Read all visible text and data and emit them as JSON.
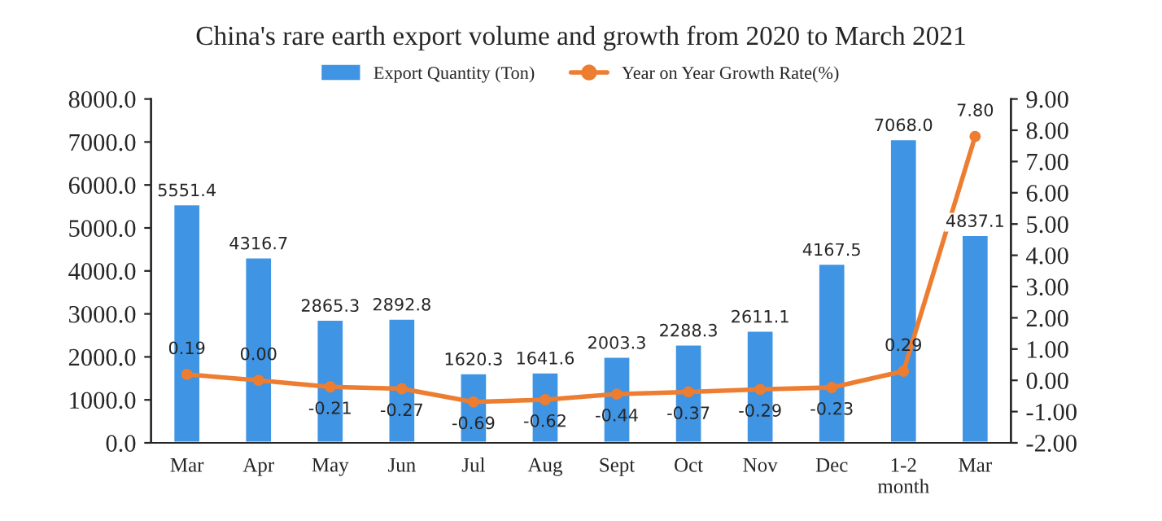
{
  "chart_data": {
    "type": "bar",
    "title": "China's rare earth export volume and growth from 2020 to March 2021",
    "categories": [
      "Mar",
      "Apr",
      "May",
      "Jun",
      "Jul",
      "Aug",
      "Sept",
      "Oct",
      "Nov",
      "Dec",
      "1-2\nmonth",
      "Mar"
    ],
    "series": [
      {
        "name": "Export Quantity (Ton)",
        "type": "bar",
        "color": "#3f94e3",
        "values": [
          5551.4,
          4316.7,
          2865.3,
          2892.8,
          1620.3,
          1641.6,
          2003.3,
          2288.3,
          2611.1,
          4167.5,
          7068.0,
          4837.1
        ],
        "value_labels": [
          "5551.4",
          "4316.7",
          "2865.3",
          "2892.8",
          "1620.3",
          "1641.6",
          "2003.3",
          "2288.3",
          "2611.1",
          "4167.5",
          "7068.0",
          "4837.1"
        ]
      },
      {
        "name": "Year on Year Growth Rate(%)",
        "type": "line",
        "axis": "y2",
        "color": "#ed7d31",
        "marker": "circle",
        "line_style": "solid",
        "values": [
          0.19,
          0.0,
          -0.21,
          -0.27,
          -0.69,
          -0.62,
          -0.44,
          -0.37,
          -0.29,
          -0.23,
          0.29,
          7.8
        ],
        "value_labels": [
          "0.19",
          "0.00",
          "-0.21",
          "-0.27",
          "-0.69",
          "-0.62",
          "-0.44",
          "-0.37",
          "-0.29",
          "-0.23",
          "0.29",
          "7.80"
        ]
      }
    ],
    "ylim": [
      0,
      8000
    ],
    "yticks": [
      {
        "value": 0,
        "label": "0.0"
      },
      {
        "value": 1000,
        "label": "1000.0"
      },
      {
        "value": 2000,
        "label": "2000.0"
      },
      {
        "value": 3000,
        "label": "3000.0"
      },
      {
        "value": 4000,
        "label": "4000.0"
      },
      {
        "value": 5000,
        "label": "5000.0"
      },
      {
        "value": 6000,
        "label": "6000.0"
      },
      {
        "value": 7000,
        "label": "7000.0"
      },
      {
        "value": 8000,
        "label": "8000.0"
      }
    ],
    "y2lim": [
      -2,
      9
    ],
    "y2ticks": [
      {
        "value": -2,
        "label": "-2.00"
      },
      {
        "value": -1,
        "label": "-1.00"
      },
      {
        "value": 0,
        "label": "0.00"
      },
      {
        "value": 1,
        "label": "1.00"
      },
      {
        "value": 2,
        "label": "2.00"
      },
      {
        "value": 3,
        "label": "3.00"
      },
      {
        "value": 4,
        "label": "4.00"
      },
      {
        "value": 5,
        "label": "5.00"
      },
      {
        "value": 6,
        "label": "6.00"
      },
      {
        "value": 7,
        "label": "7.00"
      },
      {
        "value": 8,
        "label": "8.00"
      },
      {
        "value": 9,
        "label": "9.00"
      }
    ],
    "legend": "top",
    "grid": false
  }
}
